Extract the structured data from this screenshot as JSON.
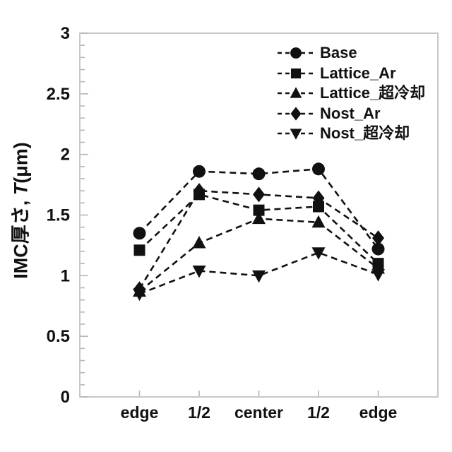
{
  "page": {
    "background": "#ffffff"
  },
  "y_axis": {
    "label_prefix": "IMC厚さ, ",
    "label_var": "T",
    "label_suffix": "(μm)",
    "tick_labels": [
      "0",
      "0.5",
      "1",
      "1.5",
      "2",
      "2.5",
      "3"
    ],
    "min": 0,
    "max": 3,
    "major_step": 0.5,
    "minor_step": 0.1
  },
  "x_axis": {
    "categories": [
      "edge",
      "1/2",
      "center",
      "1/2",
      "edge"
    ]
  },
  "colors": {
    "series": "#111111",
    "text": "#111111",
    "frame": "#c8c8c8",
    "tick": "#b5b5b5",
    "background": "#ffffff"
  },
  "chart_data": {
    "type": "line",
    "title": "",
    "xlabel": "",
    "ylabel": "IMC厚さ, T(μm)",
    "ylim": [
      0,
      3
    ],
    "grid": false,
    "legend_position": "top-right",
    "line_style": "dashed",
    "line_color": "#111111",
    "categories": [
      "edge",
      "1/2",
      "center",
      "1/2",
      "edge"
    ],
    "series": [
      {
        "name": "Base",
        "marker": "circle",
        "values": [
          1.35,
          1.86,
          1.84,
          1.88,
          1.22
        ]
      },
      {
        "name": "Lattice_Ar",
        "marker": "square",
        "values": [
          1.21,
          1.67,
          1.54,
          1.57,
          1.1
        ]
      },
      {
        "name": "Lattice_超冷却",
        "marker": "triangle-up",
        "values": [
          0.87,
          1.27,
          1.47,
          1.44,
          1.06
        ]
      },
      {
        "name": "Nost_Ar",
        "marker": "diamond",
        "values": [
          0.89,
          1.7,
          1.67,
          1.64,
          1.31
        ]
      },
      {
        "name": "Nost_超冷却",
        "marker": "triangle-down",
        "values": [
          0.85,
          1.04,
          1.0,
          1.19,
          1.01
        ]
      }
    ]
  }
}
